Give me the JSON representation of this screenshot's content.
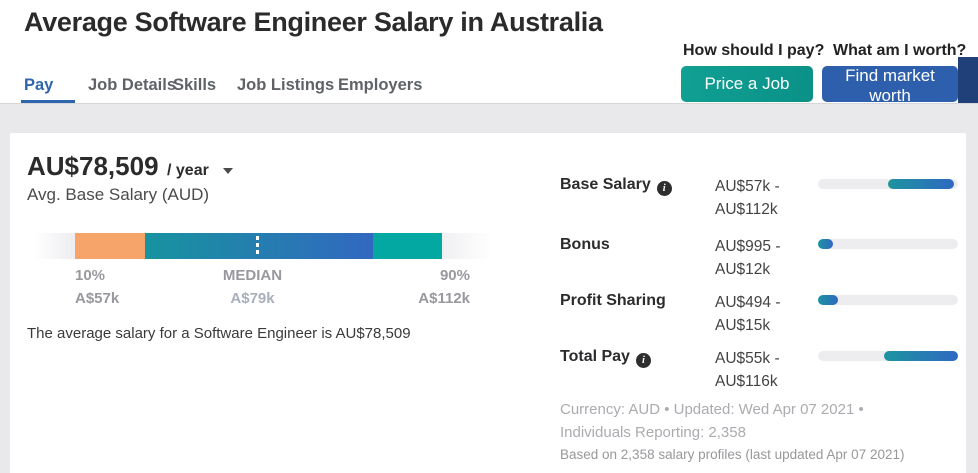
{
  "page": {
    "title": "Average Software Engineer Salary in Australia"
  },
  "tabs": [
    {
      "label": "Pay",
      "active": true
    },
    {
      "label": "Job Details",
      "active": false
    },
    {
      "label": "Skills",
      "active": false
    },
    {
      "label": "Job Listings",
      "active": false
    },
    {
      "label": "Employers",
      "active": false
    }
  ],
  "header_actions": {
    "pay_question": "How should I pay?",
    "worth_question": "What am I worth?",
    "price_job_label": "Price a Job",
    "find_worth_label": "Find market worth"
  },
  "salary_summary": {
    "amount": "AU$78,509",
    "period": "/ year",
    "label": "Avg. Base Salary (AUD)",
    "sentence": "The average salary for a Software Engineer is AU$78,509"
  },
  "percentile_bar": {
    "p10_label": "10%",
    "p10_value": "A$57k",
    "median_label": "MEDIAN",
    "median_value": "A$79k",
    "p90_label": "90%",
    "p90_value": "A$112k"
  },
  "compensation_rows": [
    {
      "label": "Base Salary",
      "has_info": true,
      "range_low": "AU$57k -",
      "range_high": "AU$112k",
      "fill_left_pct": 50,
      "fill_width_pct": 47
    },
    {
      "label": "Bonus",
      "has_info": false,
      "range_low": "AU$995 -",
      "range_high": "AU$12k",
      "fill_left_pct": 0,
      "fill_width_pct": 11
    },
    {
      "label": "Profit Sharing",
      "has_info": false,
      "range_low": "AU$494 -",
      "range_high": "AU$15k",
      "fill_left_pct": 0,
      "fill_width_pct": 14
    },
    {
      "label": "Total Pay",
      "has_info": true,
      "range_low": "AU$55k -",
      "range_high": "AU$116k",
      "fill_left_pct": 47,
      "fill_width_pct": 53
    }
  ],
  "footer": {
    "meta_line1": "Currency: AUD • Updated: Wed Apr 07 2021 •",
    "meta_line2": "Individuals Reporting: 2,358",
    "profiles_note": "Based on 2,358 salary profiles (last updated Apr 07 2021)"
  },
  "colors": {
    "tab_active_blue": "#2f65ad",
    "button_teal": "#0f9b8e",
    "button_blue": "#2e5fad",
    "edge_navy": "#20407a",
    "bar_orange": "#f6a46a",
    "bar_teal": "#17939f",
    "bar_blue": "#3268c0",
    "bar_right_teal": "#04a8a2",
    "track_gray": "#ededf0",
    "page_band_gray": "#e9e9eb"
  }
}
